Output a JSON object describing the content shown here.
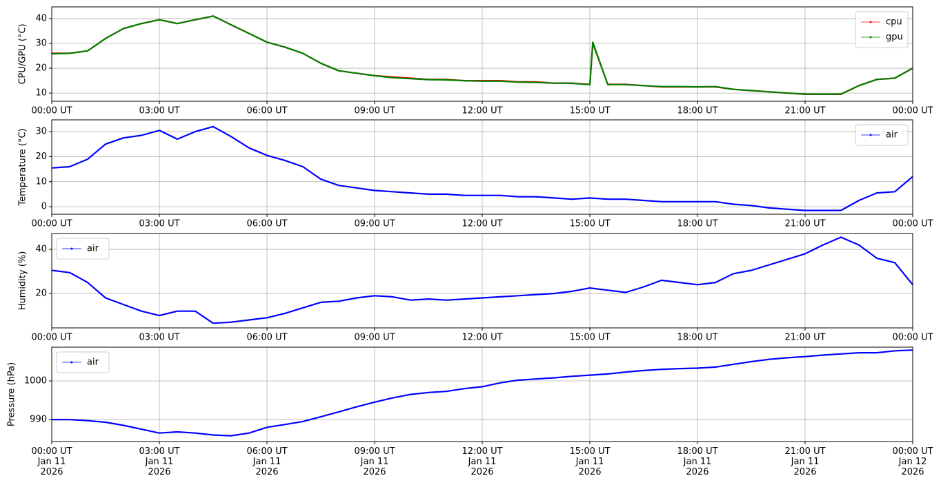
{
  "chart_data": [
    {
      "type": "line",
      "ylabel": "CPU/GPU (°C)",
      "x": [
        "2026-01-11T00:00",
        "2026-01-11T00:30",
        "2026-01-11T01:00",
        "2026-01-11T01:30",
        "2026-01-11T02:00",
        "2026-01-11T02:30",
        "2026-01-11T03:00",
        "2026-01-11T03:30",
        "2026-01-11T04:00",
        "2026-01-11T04:30",
        "2026-01-11T05:00",
        "2026-01-11T05:30",
        "2026-01-11T06:00",
        "2026-01-11T06:30",
        "2026-01-11T07:00",
        "2026-01-11T07:30",
        "2026-01-11T08:00",
        "2026-01-11T08:30",
        "2026-01-11T09:00",
        "2026-01-11T09:30",
        "2026-01-11T10:00",
        "2026-01-11T10:30",
        "2026-01-11T11:00",
        "2026-01-11T11:30",
        "2026-01-11T12:00",
        "2026-01-11T12:30",
        "2026-01-11T13:00",
        "2026-01-11T13:30",
        "2026-01-11T14:00",
        "2026-01-11T14:30",
        "2026-01-11T15:00",
        "2026-01-11T15:05",
        "2026-01-11T15:30",
        "2026-01-11T16:00",
        "2026-01-11T16:30",
        "2026-01-11T17:00",
        "2026-01-11T17:30",
        "2026-01-11T18:00",
        "2026-01-11T18:30",
        "2026-01-11T19:00",
        "2026-01-11T19:30",
        "2026-01-11T20:00",
        "2026-01-11T20:30",
        "2026-01-11T21:00",
        "2026-01-11T21:30",
        "2026-01-11T22:00",
        "2026-01-11T22:30",
        "2026-01-11T23:00",
        "2026-01-11T23:30",
        "2026-01-12T00:00"
      ],
      "series": [
        {
          "name": "cpu",
          "color": "#ff0000",
          "values": [
            26,
            26,
            27,
            32,
            36,
            38,
            39.5,
            38,
            39.5,
            41,
            37.5,
            34,
            30.5,
            28.5,
            26,
            22,
            19,
            18,
            17,
            16.5,
            16,
            15.5,
            15.5,
            15,
            15,
            15,
            14.5,
            14.5,
            14,
            14,
            13.5,
            30,
            13.5,
            13.5,
            13,
            12.5,
            12.5,
            12.5,
            12.5,
            11.5,
            11,
            10.5,
            10,
            9.5,
            9.5,
            9.5,
            13,
            15.5,
            16,
            20
          ]
        },
        {
          "name": "gpu",
          "color": "#008000",
          "values": [
            25.8,
            26,
            27,
            32,
            36,
            38,
            39.5,
            38,
            39.5,
            41,
            37.5,
            34,
            30.5,
            28.5,
            26,
            22,
            19,
            18,
            17,
            16.2,
            15.8,
            15.4,
            15.3,
            15,
            14.8,
            14.8,
            14.4,
            14.3,
            14,
            13.9,
            13.4,
            30.5,
            13.4,
            13.4,
            13,
            12.6,
            12.6,
            12.5,
            12.6,
            11.5,
            11,
            10.5,
            10,
            9.6,
            9.5,
            9.6,
            13,
            15.5,
            16,
            20
          ]
        }
      ],
      "xlim": [
        "2026-01-11T00:00",
        "2026-01-12T00:00"
      ],
      "xticks": [
        {
          "value": "2026-01-11T00:00",
          "label": "00:00 UT"
        },
        {
          "value": "2026-01-11T03:00",
          "label": "03:00 UT"
        },
        {
          "value": "2026-01-11T06:00",
          "label": "06:00 UT"
        },
        {
          "value": "2026-01-11T09:00",
          "label": "09:00 UT"
        },
        {
          "value": "2026-01-11T12:00",
          "label": "12:00 UT"
        },
        {
          "value": "2026-01-11T15:00",
          "label": "15:00 UT"
        },
        {
          "value": "2026-01-11T18:00",
          "label": "18:00 UT"
        },
        {
          "value": "2026-01-11T21:00",
          "label": "21:00 UT"
        },
        {
          "value": "2026-01-12T00:00",
          "label": "00:00 UT"
        }
      ],
      "ylim": [
        6.7,
        44.7
      ],
      "yticks": [
        10,
        20,
        30,
        40
      ],
      "grid": true,
      "legend": "upper right"
    },
    {
      "type": "line",
      "ylabel": "Temperature (°C)",
      "x": [
        "2026-01-11T00:00",
        "2026-01-11T00:30",
        "2026-01-11T01:00",
        "2026-01-11T01:30",
        "2026-01-11T02:00",
        "2026-01-11T02:30",
        "2026-01-11T03:00",
        "2026-01-11T03:30",
        "2026-01-11T04:00",
        "2026-01-11T04:30",
        "2026-01-11T05:00",
        "2026-01-11T05:30",
        "2026-01-11T06:00",
        "2026-01-11T06:30",
        "2026-01-11T07:00",
        "2026-01-11T07:30",
        "2026-01-11T08:00",
        "2026-01-11T08:30",
        "2026-01-11T09:00",
        "2026-01-11T09:30",
        "2026-01-11T10:00",
        "2026-01-11T10:30",
        "2026-01-11T11:00",
        "2026-01-11T11:30",
        "2026-01-11T12:00",
        "2026-01-11T12:30",
        "2026-01-11T13:00",
        "2026-01-11T13:30",
        "2026-01-11T14:00",
        "2026-01-11T14:30",
        "2026-01-11T15:00",
        "2026-01-11T15:30",
        "2026-01-11T16:00",
        "2026-01-11T16:30",
        "2026-01-11T17:00",
        "2026-01-11T17:30",
        "2026-01-11T18:00",
        "2026-01-11T18:30",
        "2026-01-11T19:00",
        "2026-01-11T19:30",
        "2026-01-11T20:00",
        "2026-01-11T20:30",
        "2026-01-11T21:00",
        "2026-01-11T21:30",
        "2026-01-11T22:00",
        "2026-01-11T22:30",
        "2026-01-11T23:00",
        "2026-01-11T23:30",
        "2026-01-12T00:00"
      ],
      "series": [
        {
          "name": "air",
          "color": "#0000ff",
          "values": [
            15.5,
            16,
            19,
            25,
            27.5,
            28.5,
            30.5,
            27,
            30,
            32,
            28,
            23.5,
            20.5,
            18.5,
            16,
            11,
            8.5,
            7.5,
            6.5,
            6,
            5.5,
            5,
            5,
            4.5,
            4.5,
            4.5,
            4,
            4,
            3.5,
            3,
            3.5,
            3,
            3,
            2.5,
            2,
            2,
            2,
            2,
            1,
            0.5,
            -0.5,
            -1,
            -1.5,
            -1.5,
            -1.5,
            2.5,
            5.5,
            6,
            12
          ]
        }
      ],
      "xlim": [
        "2026-01-11T00:00",
        "2026-01-12T00:00"
      ],
      "xticks": [
        {
          "value": "2026-01-11T00:00",
          "label": "00:00 UT"
        },
        {
          "value": "2026-01-11T03:00",
          "label": "03:00 UT"
        },
        {
          "value": "2026-01-11T06:00",
          "label": "06:00 UT"
        },
        {
          "value": "2026-01-11T09:00",
          "label": "09:00 UT"
        },
        {
          "value": "2026-01-11T12:00",
          "label": "12:00 UT"
        },
        {
          "value": "2026-01-11T15:00",
          "label": "15:00 UT"
        },
        {
          "value": "2026-01-11T18:00",
          "label": "18:00 UT"
        },
        {
          "value": "2026-01-11T21:00",
          "label": "21:00 UT"
        },
        {
          "value": "2026-01-12T00:00",
          "label": "00:00 UT"
        }
      ],
      "ylim": [
        -3,
        34.7
      ],
      "yticks": [
        0,
        10,
        20,
        30
      ],
      "grid": true,
      "legend": "upper right"
    },
    {
      "type": "line",
      "ylabel": "Humidity (%)",
      "x": [
        "2026-01-11T00:00",
        "2026-01-11T00:30",
        "2026-01-11T01:00",
        "2026-01-11T01:30",
        "2026-01-11T02:00",
        "2026-01-11T02:30",
        "2026-01-11T03:00",
        "2026-01-11T03:30",
        "2026-01-11T04:00",
        "2026-01-11T04:30",
        "2026-01-11T05:00",
        "2026-01-11T05:30",
        "2026-01-11T06:00",
        "2026-01-11T06:30",
        "2026-01-11T07:00",
        "2026-01-11T07:30",
        "2026-01-11T08:00",
        "2026-01-11T08:30",
        "2026-01-11T09:00",
        "2026-01-11T09:30",
        "2026-01-11T10:00",
        "2026-01-11T10:30",
        "2026-01-11T11:00",
        "2026-01-11T11:30",
        "2026-01-11T12:00",
        "2026-01-11T12:30",
        "2026-01-11T13:00",
        "2026-01-11T13:30",
        "2026-01-11T14:00",
        "2026-01-11T14:30",
        "2026-01-11T15:00",
        "2026-01-11T15:30",
        "2026-01-11T16:00",
        "2026-01-11T16:30",
        "2026-01-11T17:00",
        "2026-01-11T17:30",
        "2026-01-11T18:00",
        "2026-01-11T18:30",
        "2026-01-11T19:00",
        "2026-01-11T19:30",
        "2026-01-11T20:00",
        "2026-01-11T20:30",
        "2026-01-11T21:00",
        "2026-01-11T21:30",
        "2026-01-11T22:00",
        "2026-01-11T22:30",
        "2026-01-11T23:00",
        "2026-01-11T23:30",
        "2026-01-12T00:00"
      ],
      "series": [
        {
          "name": "air",
          "color": "#0000ff",
          "values": [
            30.5,
            29.5,
            25,
            18,
            15,
            12,
            10,
            12,
            12,
            6.5,
            7,
            8,
            9,
            11,
            13.5,
            16,
            16.5,
            18,
            19,
            18.5,
            17,
            17.5,
            17,
            17.5,
            18,
            18.5,
            19,
            19.5,
            20,
            21,
            22.5,
            21.5,
            20.5,
            23,
            26,
            25,
            24,
            25,
            29,
            30.5,
            33,
            35.5,
            38,
            42,
            45.5,
            42,
            36,
            34,
            24
          ]
        }
      ],
      "xlim": [
        "2026-01-11T00:00",
        "2026-01-12T00:00"
      ],
      "xticks": [
        {
          "value": "2026-01-11T00:00",
          "label": "00:00 UT"
        },
        {
          "value": "2026-01-11T03:00",
          "label": "03:00 UT"
        },
        {
          "value": "2026-01-11T06:00",
          "label": "06:00 UT"
        },
        {
          "value": "2026-01-11T09:00",
          "label": "09:00 UT"
        },
        {
          "value": "2026-01-11T12:00",
          "label": "12:00 UT"
        },
        {
          "value": "2026-01-11T15:00",
          "label": "15:00 UT"
        },
        {
          "value": "2026-01-11T18:00",
          "label": "18:00 UT"
        },
        {
          "value": "2026-01-11T21:00",
          "label": "21:00 UT"
        },
        {
          "value": "2026-01-12T00:00",
          "label": "00:00 UT"
        }
      ],
      "ylim": [
        4.4,
        47.2
      ],
      "yticks": [
        20,
        40
      ],
      "grid": true,
      "legend": "upper left"
    },
    {
      "type": "line",
      "ylabel": "Pressure (hPa)",
      "x": [
        "2026-01-11T00:00",
        "2026-01-11T00:30",
        "2026-01-11T01:00",
        "2026-01-11T01:30",
        "2026-01-11T02:00",
        "2026-01-11T02:30",
        "2026-01-11T03:00",
        "2026-01-11T03:30",
        "2026-01-11T04:00",
        "2026-01-11T04:30",
        "2026-01-11T05:00",
        "2026-01-11T05:30",
        "2026-01-11T06:00",
        "2026-01-11T06:30",
        "2026-01-11T07:00",
        "2026-01-11T07:30",
        "2026-01-11T08:00",
        "2026-01-11T08:30",
        "2026-01-11T09:00",
        "2026-01-11T09:30",
        "2026-01-11T10:00",
        "2026-01-11T10:30",
        "2026-01-11T11:00",
        "2026-01-11T11:30",
        "2026-01-11T12:00",
        "2026-01-11T12:30",
        "2026-01-11T13:00",
        "2026-01-11T13:30",
        "2026-01-11T14:00",
        "2026-01-11T14:30",
        "2026-01-11T15:00",
        "2026-01-11T15:30",
        "2026-01-11T16:00",
        "2026-01-11T16:30",
        "2026-01-11T17:00",
        "2026-01-11T17:30",
        "2026-01-11T18:00",
        "2026-01-11T18:30",
        "2026-01-11T19:00",
        "2026-01-11T19:30",
        "2026-01-11T20:00",
        "2026-01-11T20:30",
        "2026-01-11T21:00",
        "2026-01-11T21:30",
        "2026-01-11T22:00",
        "2026-01-11T22:30",
        "2026-01-11T23:00",
        "2026-01-11T23:30",
        "2026-01-12T00:00"
      ],
      "series": [
        {
          "name": "air",
          "color": "#0000ff",
          "values": [
            990,
            990,
            989.7,
            989.3,
            988.5,
            987.5,
            986.5,
            986.8,
            986.5,
            986,
            985.8,
            986.5,
            988,
            988.7,
            989.5,
            990.7,
            992,
            993.3,
            994.5,
            995.6,
            996.5,
            997,
            997.3,
            998,
            998.5,
            999.5,
            1000.2,
            1000.5,
            1000.8,
            1001.2,
            1001.5,
            1001.8,
            1002.3,
            1002.7,
            1003,
            1003.2,
            1003.3,
            1003.6,
            1004.3,
            1005,
            1005.6,
            1006,
            1006.3,
            1006.7,
            1007,
            1007.3,
            1007.3,
            1007.8,
            1008
          ]
        }
      ],
      "xlim": [
        "2026-01-11T00:00",
        "2026-01-12T00:00"
      ],
      "xticks": [
        {
          "value": "2026-01-11T00:00",
          "label": "00:00 UT\nJan 11\n2026"
        },
        {
          "value": "2026-01-11T03:00",
          "label": "03:00 UT\nJan 11\n2026"
        },
        {
          "value": "2026-01-11T06:00",
          "label": "06:00 UT\nJan 11\n2026"
        },
        {
          "value": "2026-01-11T09:00",
          "label": "09:00 UT\nJan 11\n2026"
        },
        {
          "value": "2026-01-11T12:00",
          "label": "12:00 UT\nJan 11\n2026"
        },
        {
          "value": "2026-01-11T15:00",
          "label": "15:00 UT\nJan 11\n2026"
        },
        {
          "value": "2026-01-11T18:00",
          "label": "18:00 UT\nJan 11\n2026"
        },
        {
          "value": "2026-01-11T21:00",
          "label": "21:00 UT\nJan 11\n2026"
        },
        {
          "value": "2026-01-12T00:00",
          "label": "00:00 UT\nJan 12\n2026"
        }
      ],
      "ylim": [
        984.3,
        1008.75
      ],
      "yticks": [
        990,
        1000
      ],
      "grid": true,
      "legend": "upper left"
    }
  ]
}
